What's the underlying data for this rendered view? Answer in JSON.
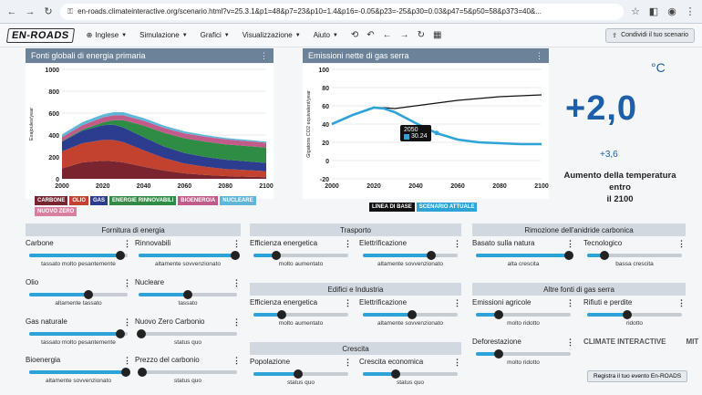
{
  "browser": {
    "url": "en-roads.climateinteractive.org/scenario.html?v=25.3.1&p1=48&p7=23&p10=1.4&p16=-0.05&p23=-25&p30=0.03&p47=5&p50=58&p373=40&..."
  },
  "app": {
    "logo": "EN-ROADS",
    "menu": [
      "Inglese",
      "Simulazione",
      "Grafici",
      "Visualizzazione",
      "Aiuto"
    ],
    "share": "Condividi il tuo scenario"
  },
  "chart_left": {
    "title": "Fonti globali di energia primaria",
    "ylabel": "Exajoules/year",
    "legend": [
      {
        "label": "CARBONE",
        "color": "#7a2430"
      },
      {
        "label": "OLIO",
        "color": "#c2412f"
      },
      {
        "label": "GAS",
        "color": "#2c3d8f"
      },
      {
        "label": "ENERGIE RINNOVABILI",
        "color": "#2f8c45"
      },
      {
        "label": "BIOENERGIA",
        "color": "#c25a8a"
      },
      {
        "label": "NUCLEARE",
        "color": "#5fb6d8"
      },
      {
        "label": "NUOVO ZERO",
        "color": "#d97fa0"
      }
    ]
  },
  "chart_right": {
    "title": "Emissioni nette di gas serra",
    "ylabel": "Gigatons CO2 equivalent/year",
    "tooltip_year": "2050",
    "tooltip_value": "30.24",
    "legend": [
      {
        "label": "LINEA DI BASE",
        "color": "#111111"
      },
      {
        "label": "SCENARIO ATTUALE",
        "color": "#2ea3d8"
      }
    ]
  },
  "chart_data": [
    {
      "type": "area",
      "title": "Fonti globali di energia primaria",
      "ylabel": "Exajoules/year",
      "x": [
        2000,
        2010,
        2020,
        2025,
        2030,
        2040,
        2050,
        2060,
        2070,
        2080,
        2090,
        2100
      ],
      "xlim": [
        2000,
        2100
      ],
      "ylim": [
        0,
        1000
      ],
      "yticks": [
        0,
        200,
        400,
        600,
        800,
        1000
      ],
      "series": [
        {
          "name": "CARBONE",
          "values": [
            95,
            150,
            165,
            160,
            150,
            110,
            75,
            50,
            35,
            25,
            20,
            15
          ]
        },
        {
          "name": "OLIO",
          "values": [
            155,
            175,
            190,
            195,
            185,
            150,
            115,
            90,
            75,
            65,
            60,
            55
          ]
        },
        {
          "name": "GAS",
          "values": [
            90,
            115,
            135,
            140,
            135,
            120,
            105,
            95,
            90,
            85,
            80,
            75
          ]
        },
        {
          "name": "ENERGIE RINNOVABILI",
          "values": [
            5,
            10,
            25,
            40,
            65,
            105,
            125,
            135,
            140,
            140,
            140,
            140
          ]
        },
        {
          "name": "BIOENERGIA",
          "values": [
            35,
            40,
            45,
            45,
            45,
            45,
            45,
            45,
            45,
            45,
            45,
            45
          ]
        },
        {
          "name": "NUCLEARE",
          "values": [
            25,
            28,
            28,
            28,
            28,
            25,
            20,
            18,
            15,
            13,
            12,
            10
          ]
        },
        {
          "name": "NUOVO ZERO",
          "values": [
            0,
            0,
            0,
            0,
            0,
            0,
            0,
            0,
            0,
            0,
            0,
            0
          ]
        }
      ]
    },
    {
      "type": "line",
      "title": "Emissioni nette di gas serra",
      "ylabel": "Gigatons CO2 equivalent/year",
      "x": [
        2000,
        2010,
        2020,
        2025,
        2030,
        2040,
        2050,
        2060,
        2070,
        2080,
        2090,
        2100
      ],
      "xlim": [
        2000,
        2100
      ],
      "ylim": [
        -20,
        100
      ],
      "yticks": [
        -20,
        0,
        20,
        40,
        60,
        80,
        100
      ],
      "series": [
        {
          "name": "LINEA DI BASE",
          "values": [
            40,
            50,
            58,
            58,
            57,
            60,
            63,
            66,
            68,
            70,
            71,
            72
          ]
        },
        {
          "name": "SCENARIO ATTUALE",
          "values": [
            40,
            50,
            58,
            57,
            53,
            41,
            30,
            23,
            20,
            19,
            18,
            18
          ]
        }
      ]
    }
  ],
  "temperature": {
    "unit": "°C",
    "value": "+2,0",
    "range": "+3,6",
    "label1": "Aumento della temperatura",
    "label2": "entro",
    "label3": "il 2100"
  },
  "sections": {
    "energy": "Fornitura di energia",
    "transport": "Trasporto",
    "buildings": "Edifici e Industria",
    "growth": "Crescita",
    "removal": "Rimozione dell'anidride carbonica",
    "othergas": "Altre fonti di gas serra"
  },
  "sliders": [
    {
      "label": "Carbone",
      "status": "tassato molto pesantemente",
      "value": 0.93
    },
    {
      "label": "Rinnovabili",
      "status": "altamente sovvenzionato",
      "value": 0.98
    },
    {
      "label": "Olio",
      "status": "altamente tassato",
      "value": 0.6
    },
    {
      "label": "Nucleare",
      "status": "tassato",
      "value": 0.5
    },
    {
      "label": "Gas naturale",
      "status": "tassato molto pesantemente",
      "value": 0.93
    },
    {
      "label": "Nuovo Zero Carbonio",
      "status": "status quo",
      "value": 0.03
    },
    {
      "label": "Bioenergia",
      "status": "altamente sovvenzionato",
      "value": 0.98
    },
    {
      "label": "Prezzo del carbonio",
      "status": "status quo",
      "value": 0.04
    },
    {
      "label": "Efficienza energetica",
      "status": "molto aumentato",
      "value": 0.24
    },
    {
      "label": "Elettrificazione",
      "status": "altamente sovvenzionato",
      "value": 0.72
    },
    {
      "label": "Efficienza energetica",
      "status": "molto aumentato",
      "value": 0.3
    },
    {
      "label": "Elettrificazione",
      "status": "altamente sovvenzionato",
      "value": 0.52
    },
    {
      "label": "Popolazione",
      "status": "status quo",
      "value": 0.47
    },
    {
      "label": "Crescita economica",
      "status": "status quo",
      "value": 0.35
    },
    {
      "label": "Basato sulla natura",
      "status": "alta crescita",
      "value": 0.98
    },
    {
      "label": "Tecnologico",
      "status": "bassa crescita",
      "value": 0.18
    },
    {
      "label": "Emissioni agricole",
      "status": "molto ridotto",
      "value": 0.24
    },
    {
      "label": "Rifiuti e perdite",
      "status": "ridotto",
      "value": 0.42
    },
    {
      "label": "Deforestazione",
      "status": "molto ridotto",
      "value": 0.24
    }
  ],
  "footer": {
    "logo1": "CLIMATE INTERACTIVE",
    "logo2": "MIT",
    "register": "Registra il tuo evento En-ROADS"
  }
}
